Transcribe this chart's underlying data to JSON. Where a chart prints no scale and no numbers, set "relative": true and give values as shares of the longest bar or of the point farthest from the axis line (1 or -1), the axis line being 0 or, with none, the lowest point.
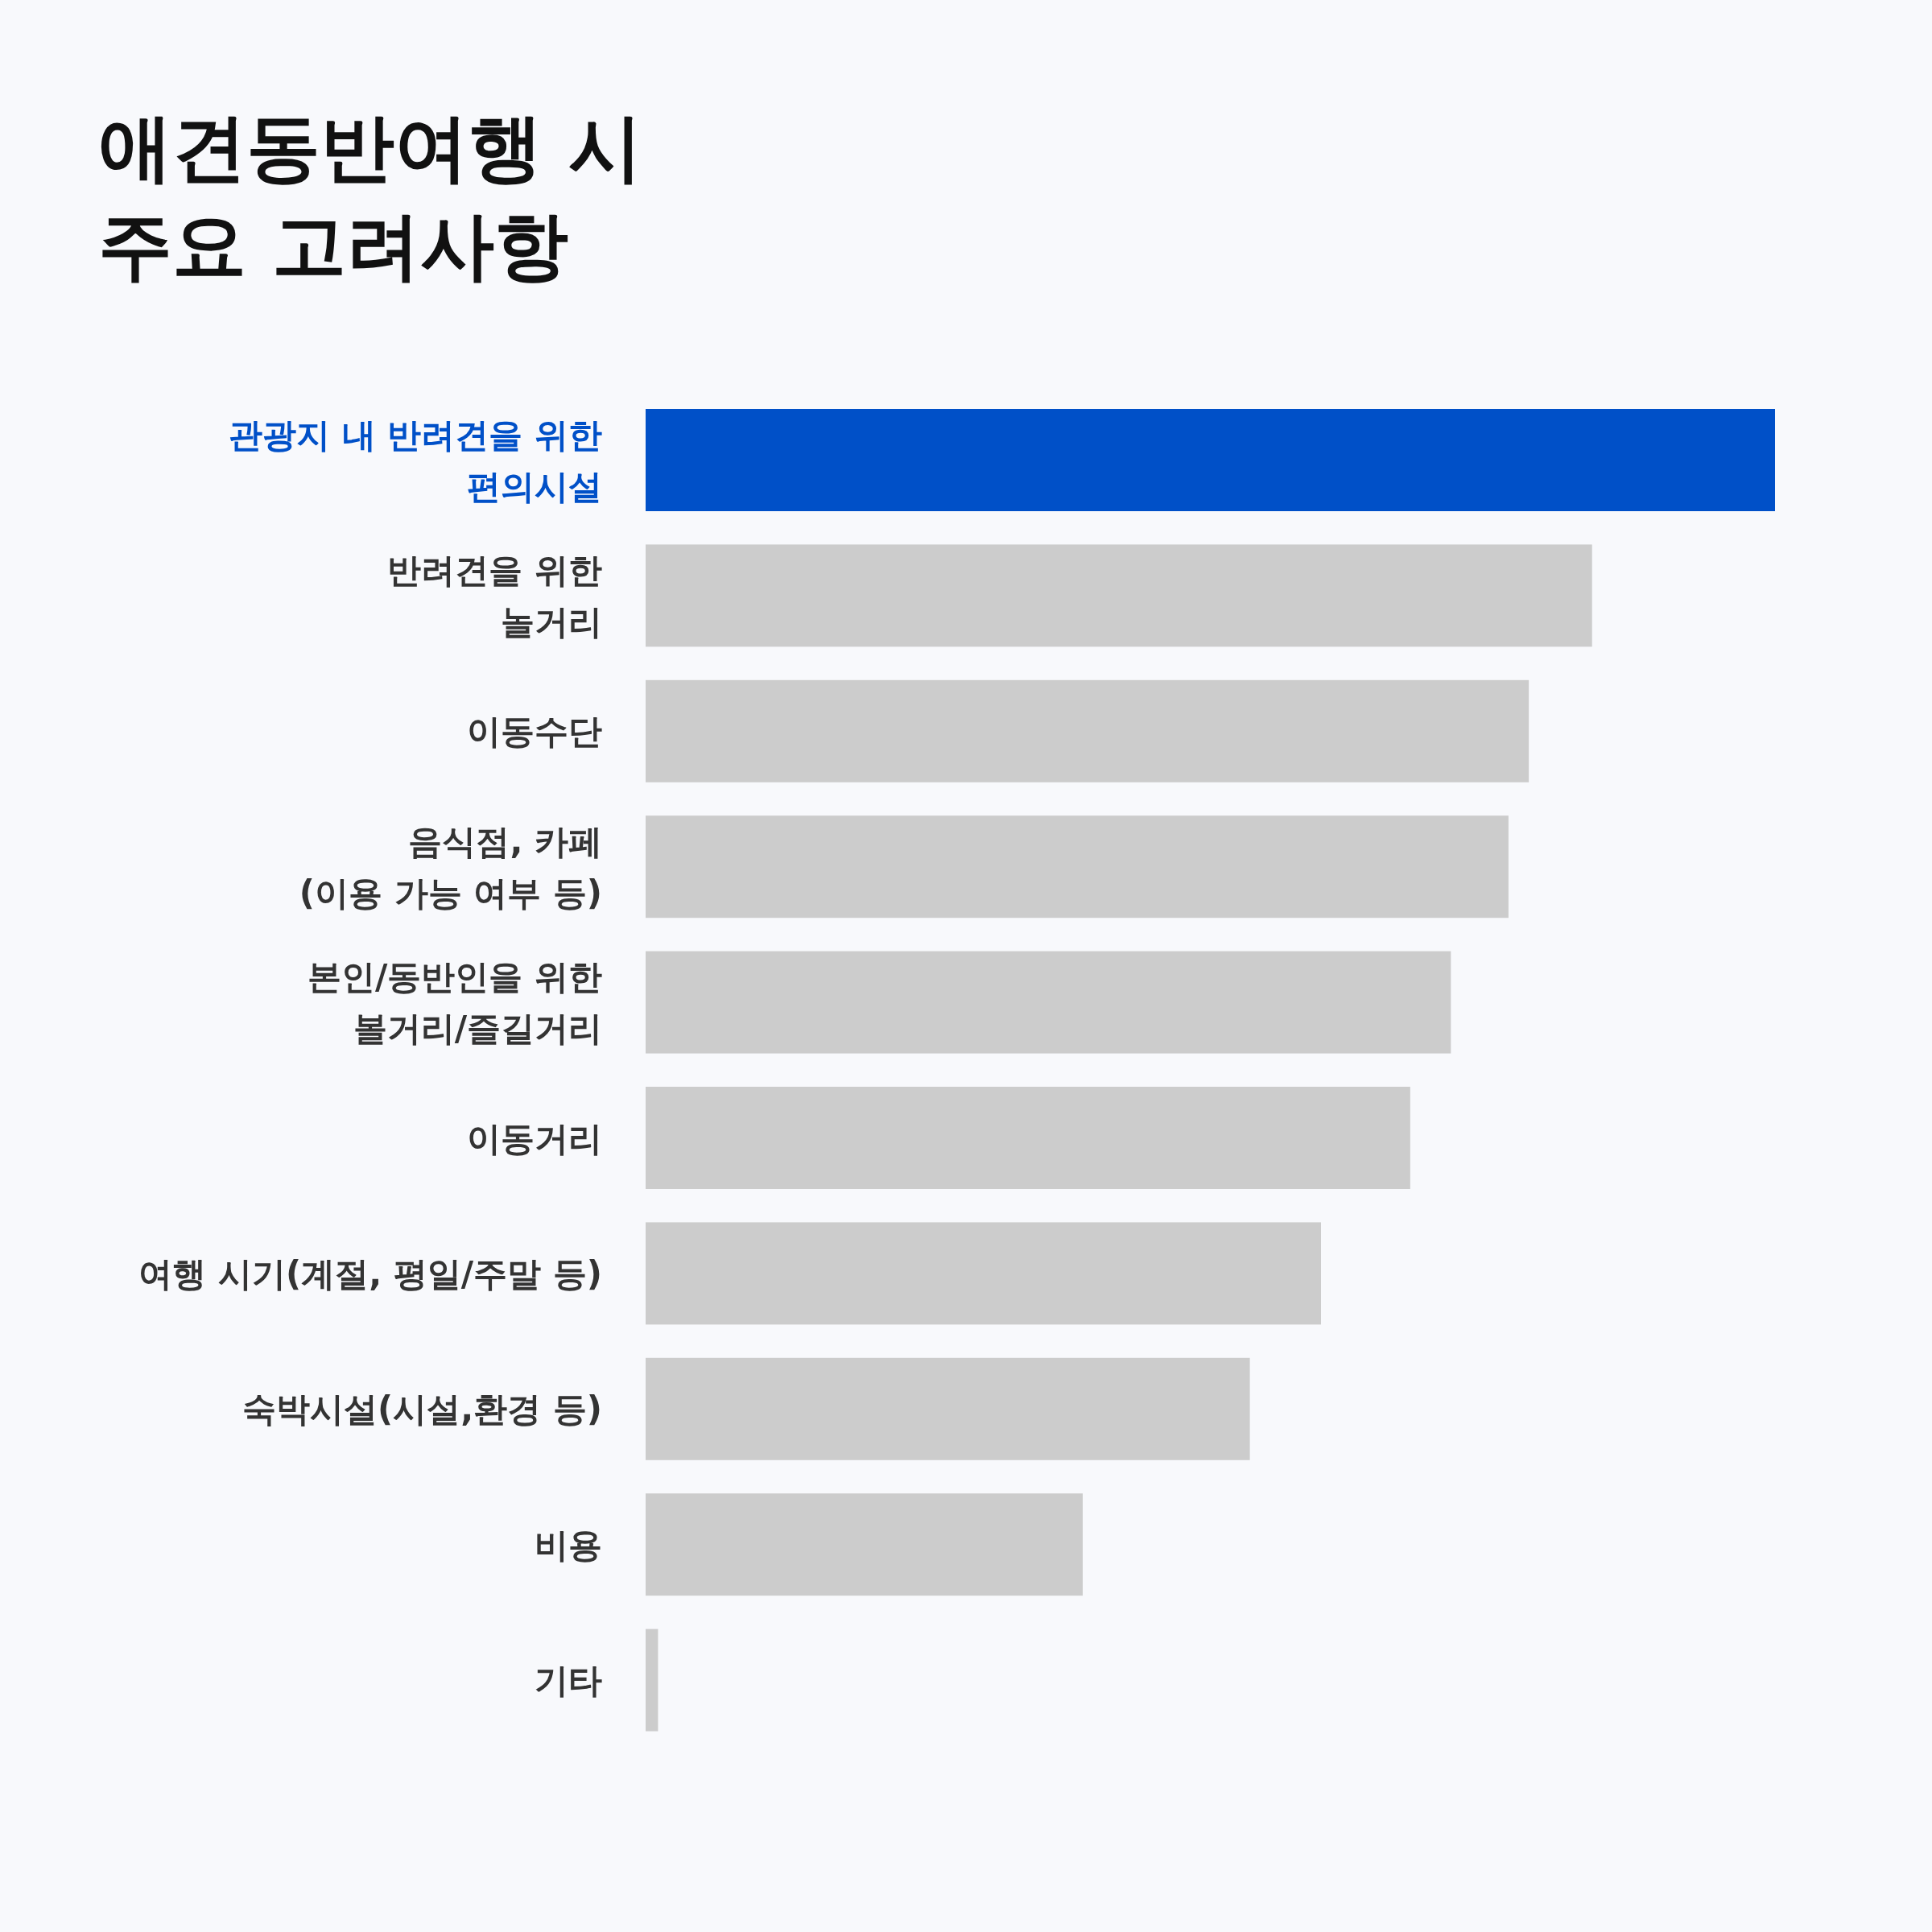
{
  "chart_data": {
    "type": "bar",
    "orientation": "horizontal",
    "relative": true,
    "title": "애견동반여행 시\n주요 고려사항",
    "categories": [
      "관광지 내 반려견을 위한\n편의시설",
      "반려견을 위한\n놀거리",
      "이동수단",
      "음식점, 카페\n(이용 가능 여부 등)",
      "본인/동반인을 위한\n볼거리/즐길거리",
      "이동거리",
      "여행 시기(계절, 평일/주말 등)",
      "숙박시설(시설,환경 등)",
      "비용",
      "기타"
    ],
    "values": [
      1,
      0.838,
      0.782,
      0.764,
      0.713,
      0.677,
      0.598,
      0.535,
      0.387,
      0.011
    ],
    "colors": [
      "#0050c8",
      "#cccccc",
      "#cccccc",
      "#cccccc",
      "#cccccc",
      "#cccccc",
      "#cccccc",
      "#cccccc",
      "#cccccc",
      "#cccccc"
    ]
  }
}
